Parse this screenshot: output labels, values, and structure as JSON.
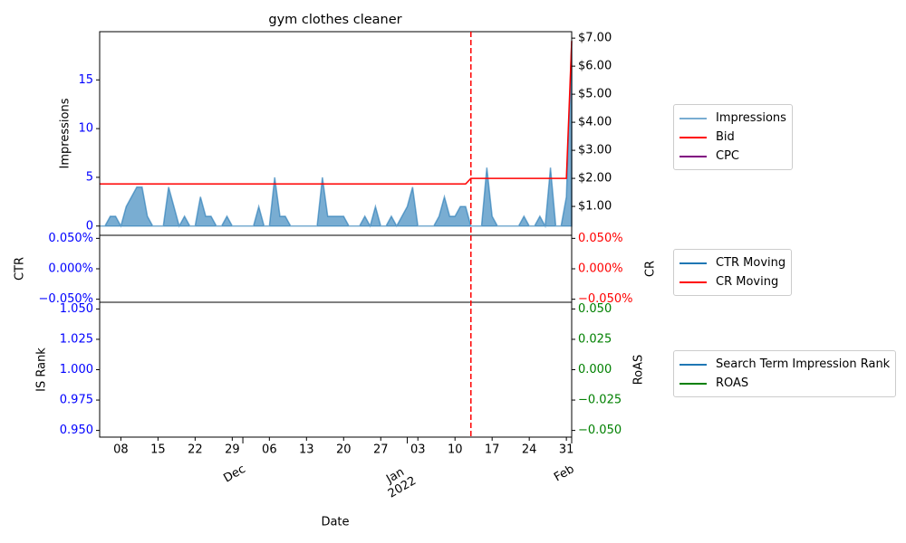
{
  "chart_data": {
    "type": "line",
    "title": "gym clothes cleaner",
    "xlabel": "Date",
    "x": [
      "2021-11-04",
      "2021-11-05",
      "2021-11-06",
      "2021-11-07",
      "2021-11-08",
      "2021-11-09",
      "2021-11-10",
      "2021-11-11",
      "2021-11-12",
      "2021-11-13",
      "2021-11-14",
      "2021-11-15",
      "2021-11-16",
      "2021-11-17",
      "2021-11-18",
      "2021-11-19",
      "2021-11-20",
      "2021-11-21",
      "2021-11-22",
      "2021-11-23",
      "2021-11-24",
      "2021-11-25",
      "2021-11-26",
      "2021-11-27",
      "2021-11-28",
      "2021-11-29",
      "2021-11-30",
      "2021-12-01",
      "2021-12-02",
      "2021-12-03",
      "2021-12-04",
      "2021-12-05",
      "2021-12-06",
      "2021-12-07",
      "2021-12-08",
      "2021-12-09",
      "2021-12-10",
      "2021-12-11",
      "2021-12-12",
      "2021-12-13",
      "2021-12-14",
      "2021-12-15",
      "2021-12-16",
      "2021-12-17",
      "2021-12-18",
      "2021-12-19",
      "2021-12-20",
      "2021-12-21",
      "2021-12-22",
      "2021-12-23",
      "2021-12-24",
      "2021-12-25",
      "2021-12-26",
      "2021-12-27",
      "2021-12-28",
      "2021-12-29",
      "2021-12-30",
      "2021-12-31",
      "2022-01-01",
      "2022-01-02",
      "2022-01-03",
      "2022-01-04",
      "2022-01-05",
      "2022-01-06",
      "2022-01-07",
      "2022-01-08",
      "2022-01-09",
      "2022-01-10",
      "2022-01-11",
      "2022-01-12",
      "2022-01-13",
      "2022-01-14",
      "2022-01-15",
      "2022-01-16",
      "2022-01-17",
      "2022-01-18",
      "2022-01-19",
      "2022-01-20",
      "2022-01-21",
      "2022-01-22",
      "2022-01-23",
      "2022-01-24",
      "2022-01-25",
      "2022-01-26",
      "2022-01-27",
      "2022-01-28",
      "2022-01-29",
      "2022-01-30",
      "2022-01-31",
      "2022-02-01"
    ],
    "xlim": [
      "2021-11-04",
      "2022-02-01"
    ],
    "xticks": [
      {
        "value": "2021-11-08",
        "label": "08"
      },
      {
        "value": "2021-11-15",
        "label": "15"
      },
      {
        "value": "2021-11-22",
        "label": "22"
      },
      {
        "value": "2021-11-29",
        "label": "29"
      },
      {
        "value": "2021-12-06",
        "label": "06"
      },
      {
        "value": "2021-12-13",
        "label": "13"
      },
      {
        "value": "2021-12-20",
        "label": "20"
      },
      {
        "value": "2021-12-27",
        "label": "27"
      },
      {
        "value": "2022-01-03",
        "label": "03"
      },
      {
        "value": "2022-01-10",
        "label": "10"
      },
      {
        "value": "2022-01-17",
        "label": "17"
      },
      {
        "value": "2022-01-24",
        "label": "24"
      },
      {
        "value": "2022-01-31",
        "label": "31"
      }
    ],
    "xticks_major": [
      {
        "value": "2021-12-01",
        "label": "Dec"
      },
      {
        "value": "2022-01-01",
        "label": "Jan\n2022"
      },
      {
        "value": "2022-02-01",
        "label": "Feb"
      }
    ],
    "vline": "2022-01-13",
    "vline_color": "red",
    "panels": [
      {
        "ylabel": "Impressions",
        "ylim": [
          -0.95,
          19.95
        ],
        "yticks": [
          0,
          5,
          10,
          15
        ],
        "ytick_color": "blue",
        "y2lim": [
          -0.03,
          7.23
        ],
        "y2ticks": [
          {
            "value": 1,
            "label": "$1.00"
          },
          {
            "value": 2,
            "label": "$2.00"
          },
          {
            "value": 3,
            "label": "$3.00"
          },
          {
            "value": 4,
            "label": "$4.00"
          },
          {
            "value": 5,
            "label": "$5.00"
          },
          {
            "value": 6,
            "label": "$6.00"
          },
          {
            "value": 7,
            "label": "$7.00"
          }
        ],
        "y2tick_color": "black",
        "series": [
          {
            "name": "Impressions",
            "color": "#1f77b4",
            "style": "area",
            "axis": "y",
            "values": [
              0,
              0,
              1,
              1,
              0,
              2,
              3,
              4,
              4,
              1,
              0,
              0,
              0,
              4,
              2,
              0,
              1,
              0,
              0,
              3,
              1,
              1,
              0,
              0,
              1,
              0,
              0,
              0,
              0,
              0,
              2,
              0,
              0,
              5,
              1,
              1,
              0,
              0,
              0,
              0,
              0,
              0,
              5,
              1,
              1,
              1,
              1,
              0,
              0,
              0,
              1,
              0,
              2,
              0,
              0,
              1,
              0,
              1,
              2,
              4,
              0,
              0,
              0,
              0,
              1,
              3,
              1,
              1,
              2,
              2,
              0,
              0,
              0,
              6,
              1,
              0,
              0,
              0,
              0,
              0,
              1,
              0,
              0,
              1,
              0,
              6,
              0,
              0,
              3,
              19
            ]
          },
          {
            "name": "Bid",
            "color": "red",
            "axis": "y2",
            "values": [
              1.8,
              1.8,
              1.8,
              1.8,
              1.8,
              1.8,
              1.8,
              1.8,
              1.8,
              1.8,
              1.8,
              1.8,
              1.8,
              1.8,
              1.8,
              1.8,
              1.8,
              1.8,
              1.8,
              1.8,
              1.8,
              1.8,
              1.8,
              1.8,
              1.8,
              1.8,
              1.8,
              1.8,
              1.8,
              1.8,
              1.8,
              1.8,
              1.8,
              1.8,
              1.8,
              1.8,
              1.8,
              1.8,
              1.8,
              1.8,
              1.8,
              1.8,
              1.8,
              1.8,
              1.8,
              1.8,
              1.8,
              1.8,
              1.8,
              1.8,
              1.8,
              1.8,
              1.8,
              1.8,
              1.8,
              1.8,
              1.8,
              1.8,
              1.8,
              1.8,
              1.8,
              1.8,
              1.8,
              1.8,
              1.8,
              1.8,
              1.8,
              1.8,
              1.8,
              1.8,
              2.0,
              2.0,
              2.0,
              2.0,
              2.0,
              2.0,
              2.0,
              2.0,
              2.0,
              2.0,
              2.0,
              2.0,
              2.0,
              2.0,
              2.0,
              2.0,
              2.0,
              2.0,
              2.0,
              6.9
            ]
          },
          {
            "name": "CPC",
            "color": "purple",
            "axis": "y2"
          }
        ]
      },
      {
        "ylabel": "CTR",
        "ylim": [
          -0.055,
          0.055
        ],
        "yticks": [
          {
            "value": -0.05,
            "label": "−0.050%"
          },
          {
            "value": 0,
            "label": "0.000%"
          },
          {
            "value": 0.05,
            "label": "0.050%"
          }
        ],
        "ytick_color": "blue",
        "y2label": "CR",
        "y2lim": [
          -0.055,
          0.055
        ],
        "y2ticks": [
          {
            "value": -0.05,
            "label": "−0.050%"
          },
          {
            "value": 0,
            "label": "0.000%"
          },
          {
            "value": 0.05,
            "label": "0.050%"
          }
        ],
        "y2tick_color": "red",
        "series": [
          {
            "name": "CTR Moving",
            "color": "#1f77b4",
            "axis": "y"
          },
          {
            "name": "CR Moving",
            "color": "red",
            "axis": "y2"
          }
        ]
      },
      {
        "ylabel": "IS Rank",
        "ylim": [
          0.9445,
          1.0555
        ],
        "yticks": [
          {
            "value": 0.95,
            "label": "0.950"
          },
          {
            "value": 0.975,
            "label": "0.975"
          },
          {
            "value": 1,
            "label": "1.000"
          },
          {
            "value": 1.025,
            "label": "1.025"
          },
          {
            "value": 1.05,
            "label": "1.050"
          }
        ],
        "ytick_color": "blue",
        "y2label": "RoAS",
        "y2lim": [
          -0.0555,
          0.0555
        ],
        "y2ticks": [
          {
            "value": -0.05,
            "label": "−0.050"
          },
          {
            "value": -0.025,
            "label": "−0.025"
          },
          {
            "value": 0,
            "label": "0.000"
          },
          {
            "value": 0.025,
            "label": "0.025"
          },
          {
            "value": 0.05,
            "label": "0.050"
          }
        ],
        "y2tick_color": "green",
        "series": [
          {
            "name": "Search Term Impression Rank",
            "color": "#1f77b4",
            "axis": "y"
          },
          {
            "name": "ROAS",
            "color": "green",
            "axis": "y2"
          }
        ]
      }
    ]
  }
}
